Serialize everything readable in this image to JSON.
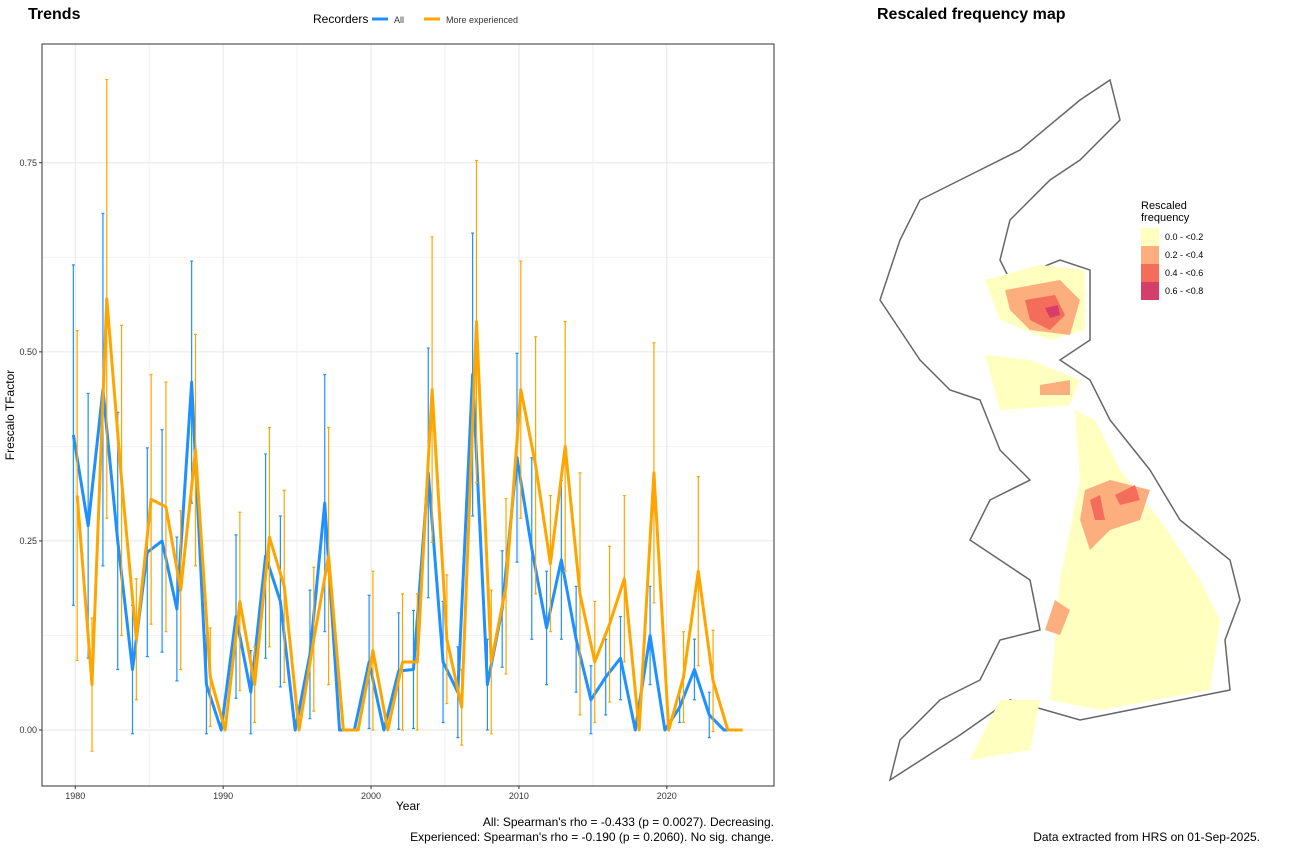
{
  "chart_data": {
    "type": "line",
    "title": "Trends",
    "legend_title": "Recorders",
    "x_label": "Year",
    "y_label": "Frescalo TFactor",
    "annotations": [
      "All: Spearman's rho = -0.433 (p = 0.0027). Decreasing.",
      "Experienced: Spearman's rho = -0.190 (p = 0.2060). No sig. change."
    ],
    "x": [
      1980,
      1981,
      1982,
      1983,
      1984,
      1985,
      1986,
      1987,
      1988,
      1989,
      1990,
      1991,
      1992,
      1993,
      1994,
      1995,
      1996,
      1997,
      1998,
      1999,
      2000,
      2001,
      2002,
      2003,
      2004,
      2005,
      2006,
      2007,
      2008,
      2009,
      2010,
      2011,
      2012,
      2013,
      2014,
      2015,
      2016,
      2017,
      2018,
      2019,
      2020,
      2021,
      2022,
      2023,
      2024,
      2025
    ],
    "series": [
      {
        "name": "All",
        "color": "#1e90ff",
        "values": [
          0.39,
          0.27,
          0.45,
          0.25,
          0.08,
          0.235,
          0.25,
          0.16,
          0.46,
          0.06,
          0,
          0.15,
          0.05,
          0.23,
          0.17,
          0,
          0.1,
          0.3,
          0,
          0,
          0.09,
          0,
          0.078,
          0.08,
          0.34,
          0.09,
          0.05,
          0.47,
          0.06,
          0.16,
          0.36,
          0.24,
          0.135,
          0.225,
          0.12,
          0.04,
          0.07,
          0.095,
          0,
          0.125,
          0,
          0.03,
          0.08,
          0.02,
          0,
          0
        ],
        "errors": [
          0.225,
          0.175,
          0.233,
          0.17,
          0.085,
          0.138,
          0.147,
          0.095,
          0.16,
          0.065,
          0,
          0.108,
          0.055,
          0.135,
          0.113,
          0,
          0.085,
          0.17,
          0,
          0,
          0.088,
          0,
          0.077,
          0.078,
          0.165,
          0.08,
          0.06,
          0.187,
          0.06,
          0.077,
          0.138,
          0.12,
          0.075,
          0.105,
          0.07,
          0.045,
          0.05,
          0.055,
          0,
          0.065,
          0,
          0.02,
          0.04,
          0.03,
          0,
          0
        ]
      },
      {
        "name": "More experienced",
        "color": "#ffa500",
        "values": [
          0.31,
          0.06,
          0.57,
          0.33,
          0.12,
          0.305,
          0.295,
          0.185,
          0.37,
          0.07,
          0,
          0.17,
          0.06,
          0.255,
          0.19,
          0,
          0.12,
          0.23,
          0,
          0,
          0.105,
          0,
          0.09,
          0.09,
          0.45,
          0.12,
          0.03,
          0.54,
          0.09,
          0.19,
          0.45,
          0.35,
          0.22,
          0.375,
          0.18,
          0.09,
          0.14,
          0.2,
          0,
          0.34,
          0,
          0.07,
          0.21,
          0.065,
          0,
          0
        ],
        "errors": [
          0.218,
          0.088,
          0.29,
          0.205,
          0.08,
          0.165,
          0.165,
          0.105,
          0.153,
          0.065,
          0,
          0.118,
          0.05,
          0.145,
          0.127,
          0,
          0.095,
          0.17,
          0,
          0,
          0.105,
          0,
          0.09,
          0.09,
          0.202,
          0.085,
          0.05,
          0.213,
          0.095,
          0.116,
          0.17,
          0.17,
          0.09,
          0.165,
          0.16,
          0.08,
          0.103,
          0.11,
          0,
          0.172,
          0,
          0.06,
          0.125,
          0.067,
          0,
          0
        ]
      }
    ],
    "xlim": [
      1977.75,
      2027.25
    ],
    "ylim": [
      -0.074,
      0.907
    ],
    "xticks": [
      1980,
      1990,
      2000,
      2010,
      2020
    ],
    "yticks": [
      {
        "value": 0,
        "label": "0.00"
      },
      {
        "value": 0.25,
        "label": "0.25"
      },
      {
        "value": 0.5,
        "label": "0.50"
      },
      {
        "value": 0.75,
        "label": "0.75"
      }
    ],
    "grid": true,
    "legend": "top"
  },
  "map": {
    "title": "Rescaled frequency map",
    "legend_title": "Rescaled frequency",
    "classes": [
      {
        "label": "0.0 - <0.2",
        "color": "#ffffbf"
      },
      {
        "label": "0.2 - <0.4",
        "color": "#fdae7e"
      },
      {
        "label": "0.4 - <0.6",
        "color": "#f46d5a"
      },
      {
        "label": "0.6 - <0.8",
        "color": "#d53e6b"
      }
    ],
    "note": "Data extracted from HRS on 01-Sep-2025."
  }
}
